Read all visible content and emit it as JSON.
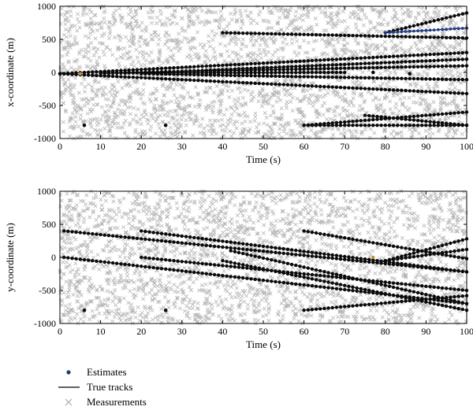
{
  "legend": [
    {
      "key": "estimates",
      "label": "Estimates",
      "marker": "dot",
      "color": "#1f3b6e"
    },
    {
      "key": "true_tracks",
      "label": "True tracks",
      "marker": "line",
      "color": "#000000"
    },
    {
      "key": "measurements",
      "label": "Measurements",
      "marker": "cross",
      "color": "#a8a8a8"
    }
  ],
  "colors": {
    "track": "#000000",
    "dot": "#0a0a0a",
    "clutter": "#b4b4b4",
    "estimate_blue": "#1f3b8e",
    "estimate_orange": "#c8902a"
  },
  "chart_data": [
    {
      "type": "scatter",
      "title": "",
      "xlabel": "Time (s)",
      "ylabel": "x-coordinate (m)",
      "xlim": [
        0,
        100
      ],
      "ylim": [
        -1000,
        1000
      ],
      "xticks": [
        0,
        10,
        20,
        30,
        40,
        50,
        60,
        70,
        80,
        90,
        100
      ],
      "yticks": [
        -1000,
        -500,
        0,
        500,
        1000
      ],
      "grid": false,
      "tracks": [
        {
          "t": [
            0,
            100
          ],
          "v": [
            -20,
            300
          ]
        },
        {
          "t": [
            0,
            100
          ],
          "v": [
            -20,
            -320
          ]
        },
        {
          "t": [
            20,
            100
          ],
          "v": [
            -10,
            200
          ]
        },
        {
          "t": [
            40,
            100
          ],
          "v": [
            600,
            520
          ]
        },
        {
          "t": [
            80,
            100
          ],
          "v": [
            600,
            900
          ]
        },
        {
          "t": [
            80,
            100
          ],
          "v": [
            600,
            670
          ]
        },
        {
          "t": [
            10,
            100
          ],
          "v": [
            -10,
            100
          ]
        },
        {
          "t": [
            10,
            70
          ],
          "v": [
            -10,
            0
          ]
        },
        {
          "t": [
            20,
            100
          ],
          "v": [
            -20,
            -110
          ]
        },
        {
          "t": [
            60,
            100
          ],
          "v": [
            -800,
            -800
          ]
        },
        {
          "t": [
            60,
            100
          ],
          "v": [
            -800,
            -600
          ]
        },
        {
          "t": [
            75,
            100
          ],
          "v": [
            -650,
            -800
          ]
        }
      ],
      "blue_track_index": 5,
      "isolated_estimates": [
        {
          "t": 6,
          "v": -800
        },
        {
          "t": 26,
          "v": -800
        },
        {
          "t": 77,
          "v": 0
        },
        {
          "t": 86,
          "v": -20
        }
      ],
      "orange_estimates": [
        {
          "t": 5,
          "v": -20
        }
      ]
    },
    {
      "type": "scatter",
      "title": "",
      "xlabel": "Time (s)",
      "ylabel": "y-coordinate (m)",
      "xlim": [
        0,
        100
      ],
      "ylim": [
        -1000,
        1000
      ],
      "xticks": [
        0,
        10,
        20,
        30,
        40,
        50,
        60,
        70,
        80,
        90,
        100
      ],
      "yticks": [
        -1000,
        -500,
        0,
        500,
        1000
      ],
      "grid": false,
      "tracks": [
        {
          "t": [
            1,
            100
          ],
          "v": [
            400,
            -220
          ]
        },
        {
          "t": [
            20,
            100
          ],
          "v": [
            400,
            -220
          ]
        },
        {
          "t": [
            1,
            100
          ],
          "v": [
            0,
            -700
          ]
        },
        {
          "t": [
            20,
            100
          ],
          "v": [
            0,
            -500
          ]
        },
        {
          "t": [
            60,
            100
          ],
          "v": [
            400,
            -20
          ]
        },
        {
          "t": [
            60,
            100
          ],
          "v": [
            -800,
            -580
          ]
        },
        {
          "t": [
            42,
            100
          ],
          "v": [
            100,
            -700
          ]
        },
        {
          "t": [
            40,
            100
          ],
          "v": [
            -50,
            -800
          ]
        },
        {
          "t": [
            80,
            100
          ],
          "v": [
            -50,
            280
          ]
        },
        {
          "t": [
            80,
            100
          ],
          "v": [
            -50,
            120
          ]
        }
      ],
      "isolated_estimates": [
        {
          "t": 6,
          "v": -800
        },
        {
          "t": 26,
          "v": -800
        }
      ],
      "orange_estimates": [
        {
          "t": 77,
          "v": 0
        }
      ]
    }
  ]
}
